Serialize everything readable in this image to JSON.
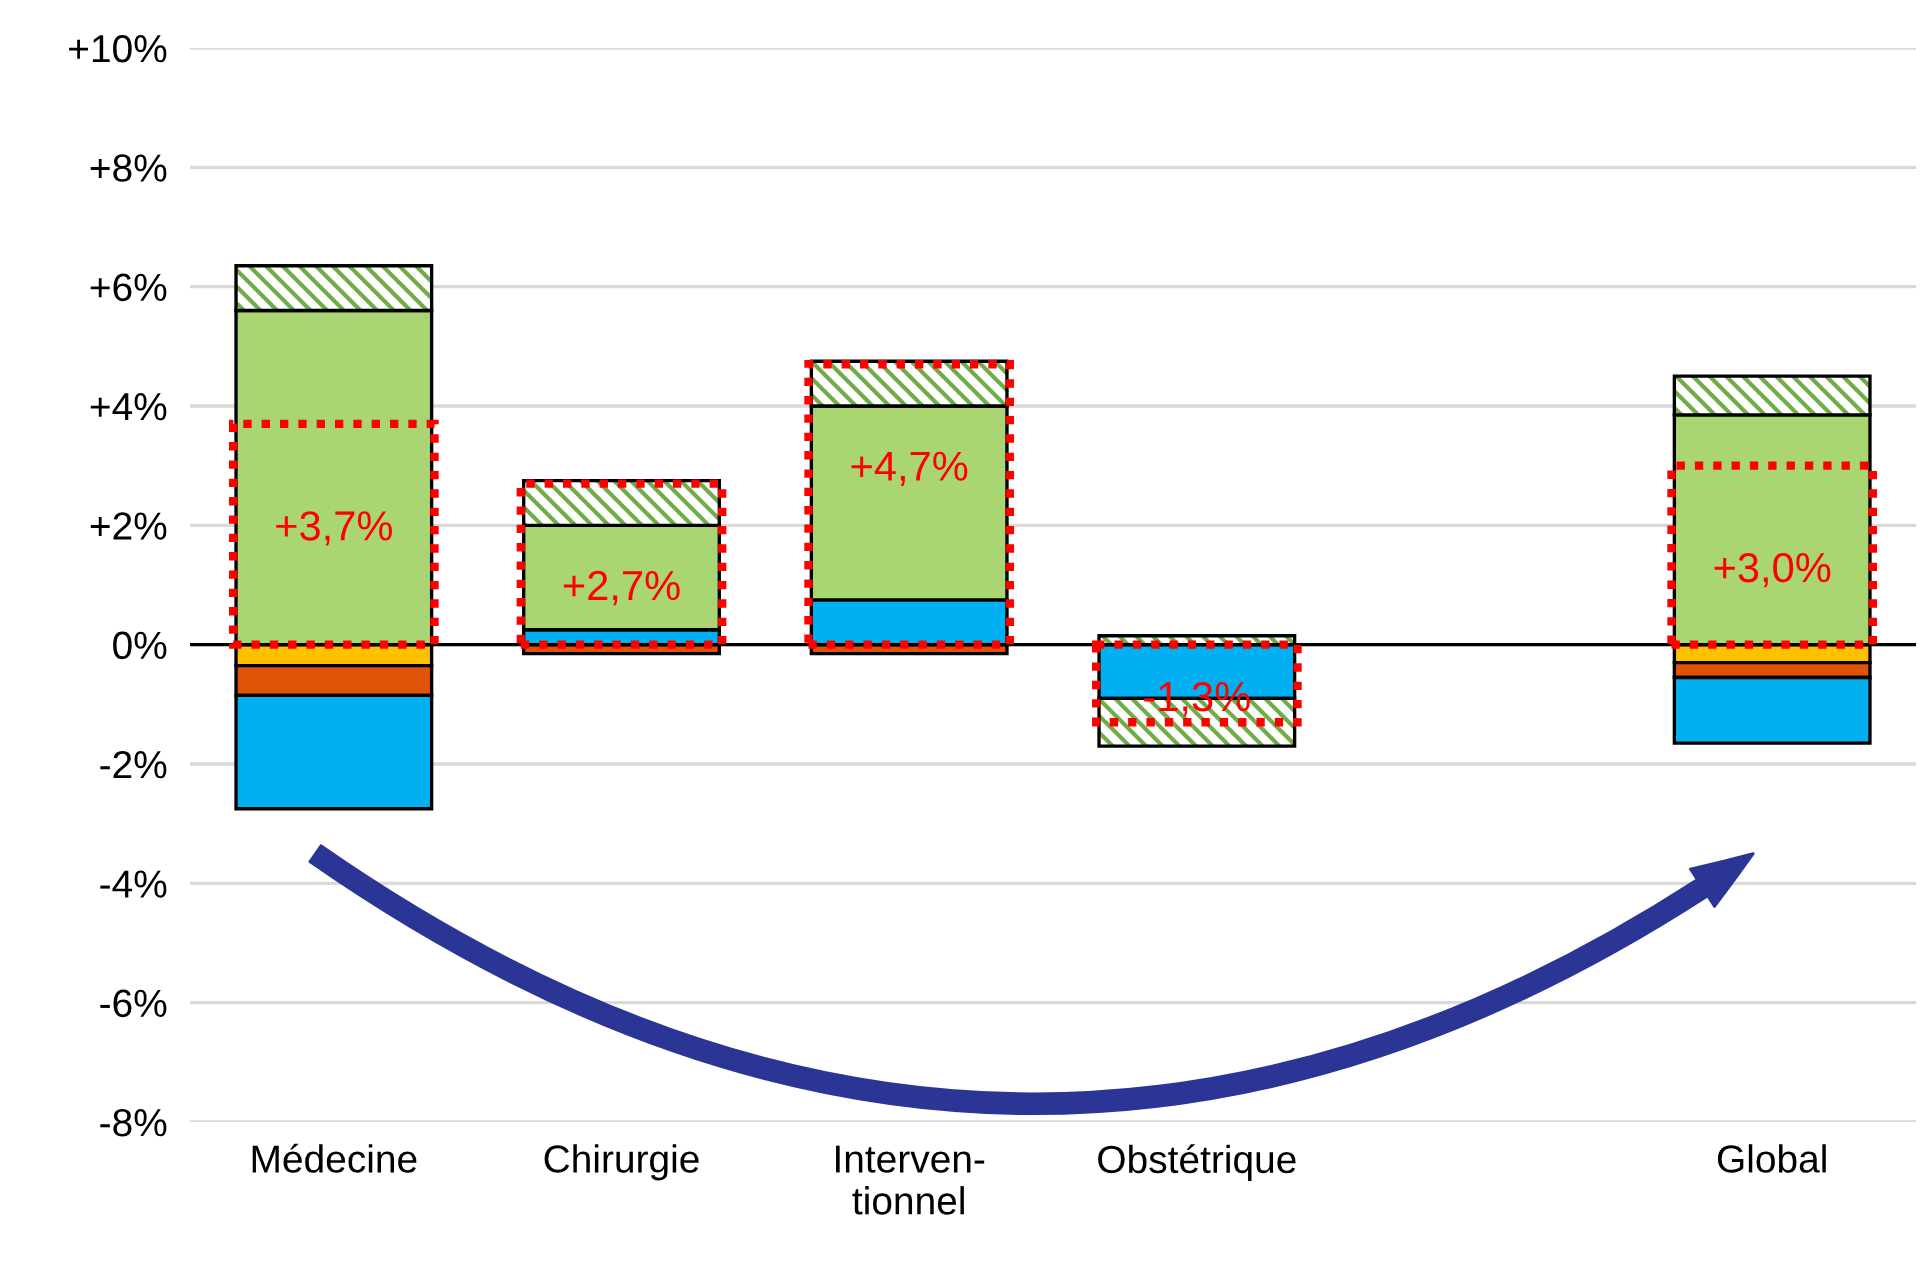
{
  "chart_data": [
    {
      "type": "bar",
      "stacked": true,
      "categories": [
        "Médecine",
        "Chirurgie",
        "Interven-\ntionnel",
        "Obstétrique",
        null,
        "Global"
      ],
      "series": [
        {
          "color": "#ffc000",
          "values": [
            -0.35,
            null,
            null,
            0,
            null,
            -0.3
          ]
        },
        {
          "color": "#e05206",
          "values": [
            -0.5,
            -0.15,
            -0.15,
            0,
            null,
            -0.25
          ]
        },
        {
          "color": "#00b0f0",
          "values": [
            -1.9,
            0.25,
            0.75,
            -0.9,
            null,
            -1.1
          ]
        },
        {
          "color": "#a9d672",
          "values": [
            5.6,
            1.75,
            3.25,
            0,
            null,
            3.85
          ]
        },
        {
          "color": "#70ad47",
          "values": [
            0.75,
            0.75,
            0.75,
            0.15,
            null,
            0.65
          ]
        },
        {
          "color": "#70ad47",
          "values": [
            0,
            0,
            0,
            -0.8,
            null,
            0
          ]
        }
      ],
      "ylim": [
        -8,
        10
      ],
      "yticks": [
        {
          "value": -8,
          "label": "-8%"
        },
        {
          "value": -6,
          "label": "-6%"
        },
        {
          "value": -4,
          "label": "-4%"
        },
        {
          "value": -2,
          "label": "-2%"
        },
        {
          "value": 0,
          "label": "0%"
        },
        {
          "value": 2,
          "label": "+2%"
        },
        {
          "value": 4,
          "label": "+4%"
        },
        {
          "value": 6,
          "label": "+6%"
        },
        {
          "value": 8,
          "label": "+8%"
        },
        {
          "value": 10,
          "label": "+10%"
        }
      ],
      "grid": "y",
      "legend": false,
      "ref_lines": [
        {
          "axis": "y",
          "value": 0,
          "color": "#000000"
        }
      ]
    },
    {
      "type": "bar",
      "categories": [
        null,
        null,
        null,
        null,
        null,
        null
      ],
      "series": [
        {
          "color": "#ff0000",
          "values": [
            3.7,
            2.7,
            4.7,
            -1.3,
            null,
            3.0
          ],
          "value_labels": [
            "+3,7%",
            "+2,7%",
            "+4,7%",
            "-1,3%",
            null,
            "+3,0%"
          ]
        }
      ],
      "ylim": [
        -8,
        10
      ],
      "tick_labels": false
    }
  ]
}
